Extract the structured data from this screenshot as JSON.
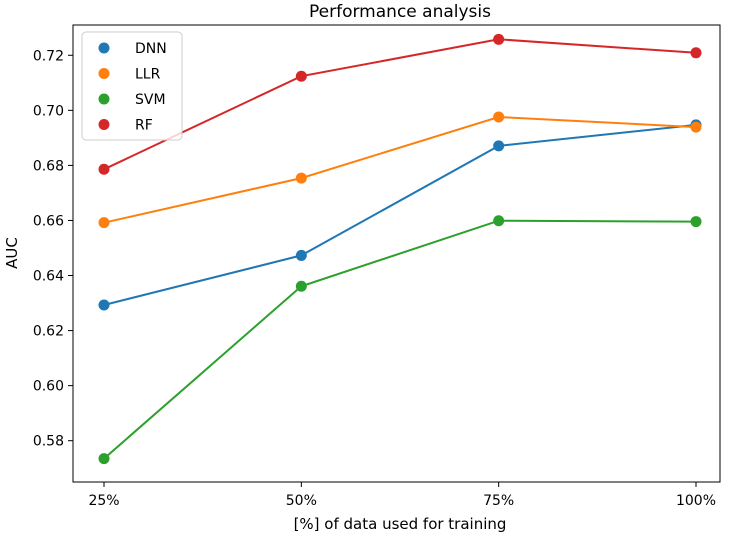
{
  "chart_data": {
    "type": "line",
    "title": "Performance analysis",
    "xlabel": "[%] of data used for training",
    "ylabel": "AUC",
    "categories": [
      "25%",
      "50%",
      "75%",
      "100%"
    ],
    "ylim": [
      0.565,
      0.731
    ],
    "yticks": [
      0.58,
      0.6,
      0.62,
      0.64,
      0.66,
      0.68,
      0.7,
      0.72
    ],
    "ytick_labels": [
      "0.58",
      "0.60",
      "0.62",
      "0.64",
      "0.66",
      "0.68",
      "0.70",
      "0.72"
    ],
    "grid": false,
    "legend_position": "top-left",
    "series": [
      {
        "name": "DNN",
        "color": "#1f77b4",
        "values": [
          0.6293,
          0.6473,
          0.6871,
          0.6947
        ]
      },
      {
        "name": "LLR",
        "color": "#ff7f0e",
        "values": [
          0.6592,
          0.6754,
          0.6976,
          0.6939
        ]
      },
      {
        "name": "SVM",
        "color": "#2ca02c",
        "values": [
          0.5735,
          0.6361,
          0.6599,
          0.6596
        ]
      },
      {
        "name": "RF",
        "color": "#d62728",
        "values": [
          0.6786,
          0.7124,
          0.7258,
          0.7209
        ]
      }
    ]
  }
}
